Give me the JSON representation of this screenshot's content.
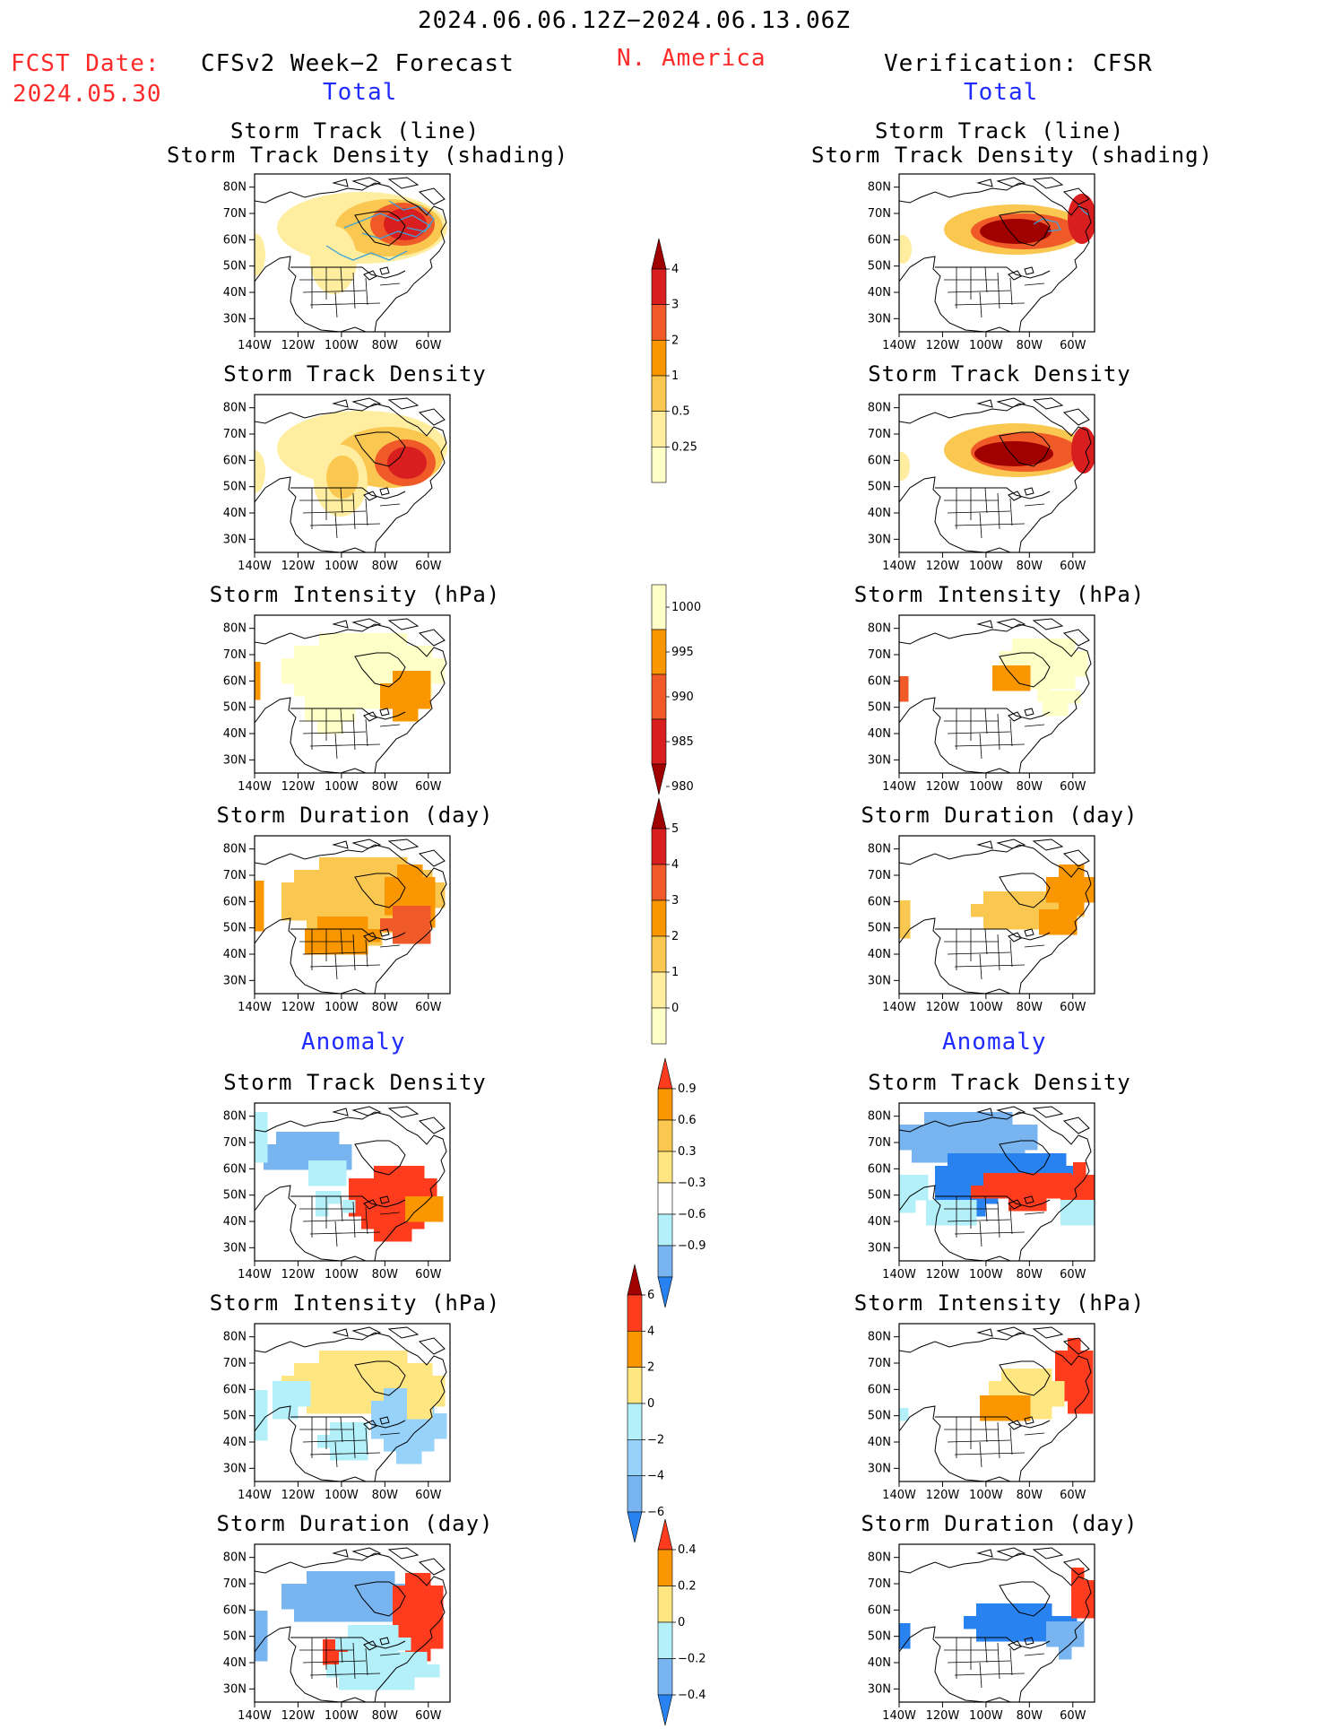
{
  "header": {
    "period": "2024.06.06.12Z−2024.06.13.06Z",
    "fcst_label": "FCST Date:",
    "fcst_date": "2024.05.30",
    "left_title": "CFSv2 Week−2 Forecast",
    "region": "N. America",
    "right_title": "Verification: CFSR",
    "total_label": "Total",
    "anomaly_label": "Anomaly"
  },
  "map_axes": {
    "lat_labels": [
      "80N",
      "70N",
      "60N",
      "50N",
      "40N",
      "30N"
    ],
    "lon_labels": [
      "140W",
      "120W",
      "100W",
      "80W",
      "60W"
    ],
    "lon_range": [
      -140,
      -50
    ],
    "lat_range": [
      25,
      85
    ]
  },
  "panels": {
    "track_line_title1": "Storm Track (line)",
    "track_line_title2": "Storm Track Density (shading)",
    "track_density": "Storm Track Density",
    "intensity": "Storm Intensity (hPa)",
    "duration": "Storm Duration (day)"
  },
  "colorbars": {
    "density_total": {
      "labels": [
        "4",
        "3",
        "2",
        "1",
        "0.5",
        "0.25"
      ],
      "colors": [
        "#a00000",
        "#d81e1e",
        "#f05a28",
        "#fa9600",
        "#fac850",
        "#ffeea0",
        "#ffffc8"
      ],
      "extend": "top"
    },
    "intensity_total": {
      "labels": [
        "1000",
        "995",
        "990",
        "985",
        "980"
      ],
      "colors": [
        "#ffffc8",
        "#fa9600",
        "#f05a28",
        "#d81e1e",
        "#a00000"
      ],
      "extend": "bottom"
    },
    "duration_total": {
      "labels": [
        "5",
        "4",
        "3",
        "2",
        "1",
        "0"
      ],
      "colors": [
        "#a00000",
        "#d81e1e",
        "#f05a28",
        "#fa9600",
        "#fac850",
        "#ffeea0",
        "#ffffc8"
      ],
      "extend": "top"
    },
    "density_anom": {
      "labels": [
        "0.9",
        "0.6",
        "0.3",
        "−0.3",
        "−0.6",
        "−0.9"
      ],
      "colors": [
        "#ff3c1e",
        "#fa9600",
        "#fac850",
        "#ffe680",
        "#ffffff",
        "#b4f0fa",
        "#78b4f0",
        "#2882f0"
      ],
      "extend": "both"
    },
    "intensity_anom": {
      "labels": [
        "6",
        "4",
        "2",
        "0",
        "−2",
        "−4",
        "−6"
      ],
      "colors": [
        "#a00000",
        "#ff3c1e",
        "#fa9600",
        "#ffe680",
        "#b4f0fa",
        "#96d2fa",
        "#78b4f0",
        "#2882f0"
      ],
      "extend": "both"
    },
    "duration_anom": {
      "labels": [
        "0.4",
        "0.2",
        "0",
        "−0.2",
        "−0.4"
      ],
      "colors": [
        "#ff3c1e",
        "#fa9600",
        "#ffe680",
        "#b4f0fa",
        "#78b4f0",
        "#2882f0"
      ],
      "extend": "both"
    }
  }
}
